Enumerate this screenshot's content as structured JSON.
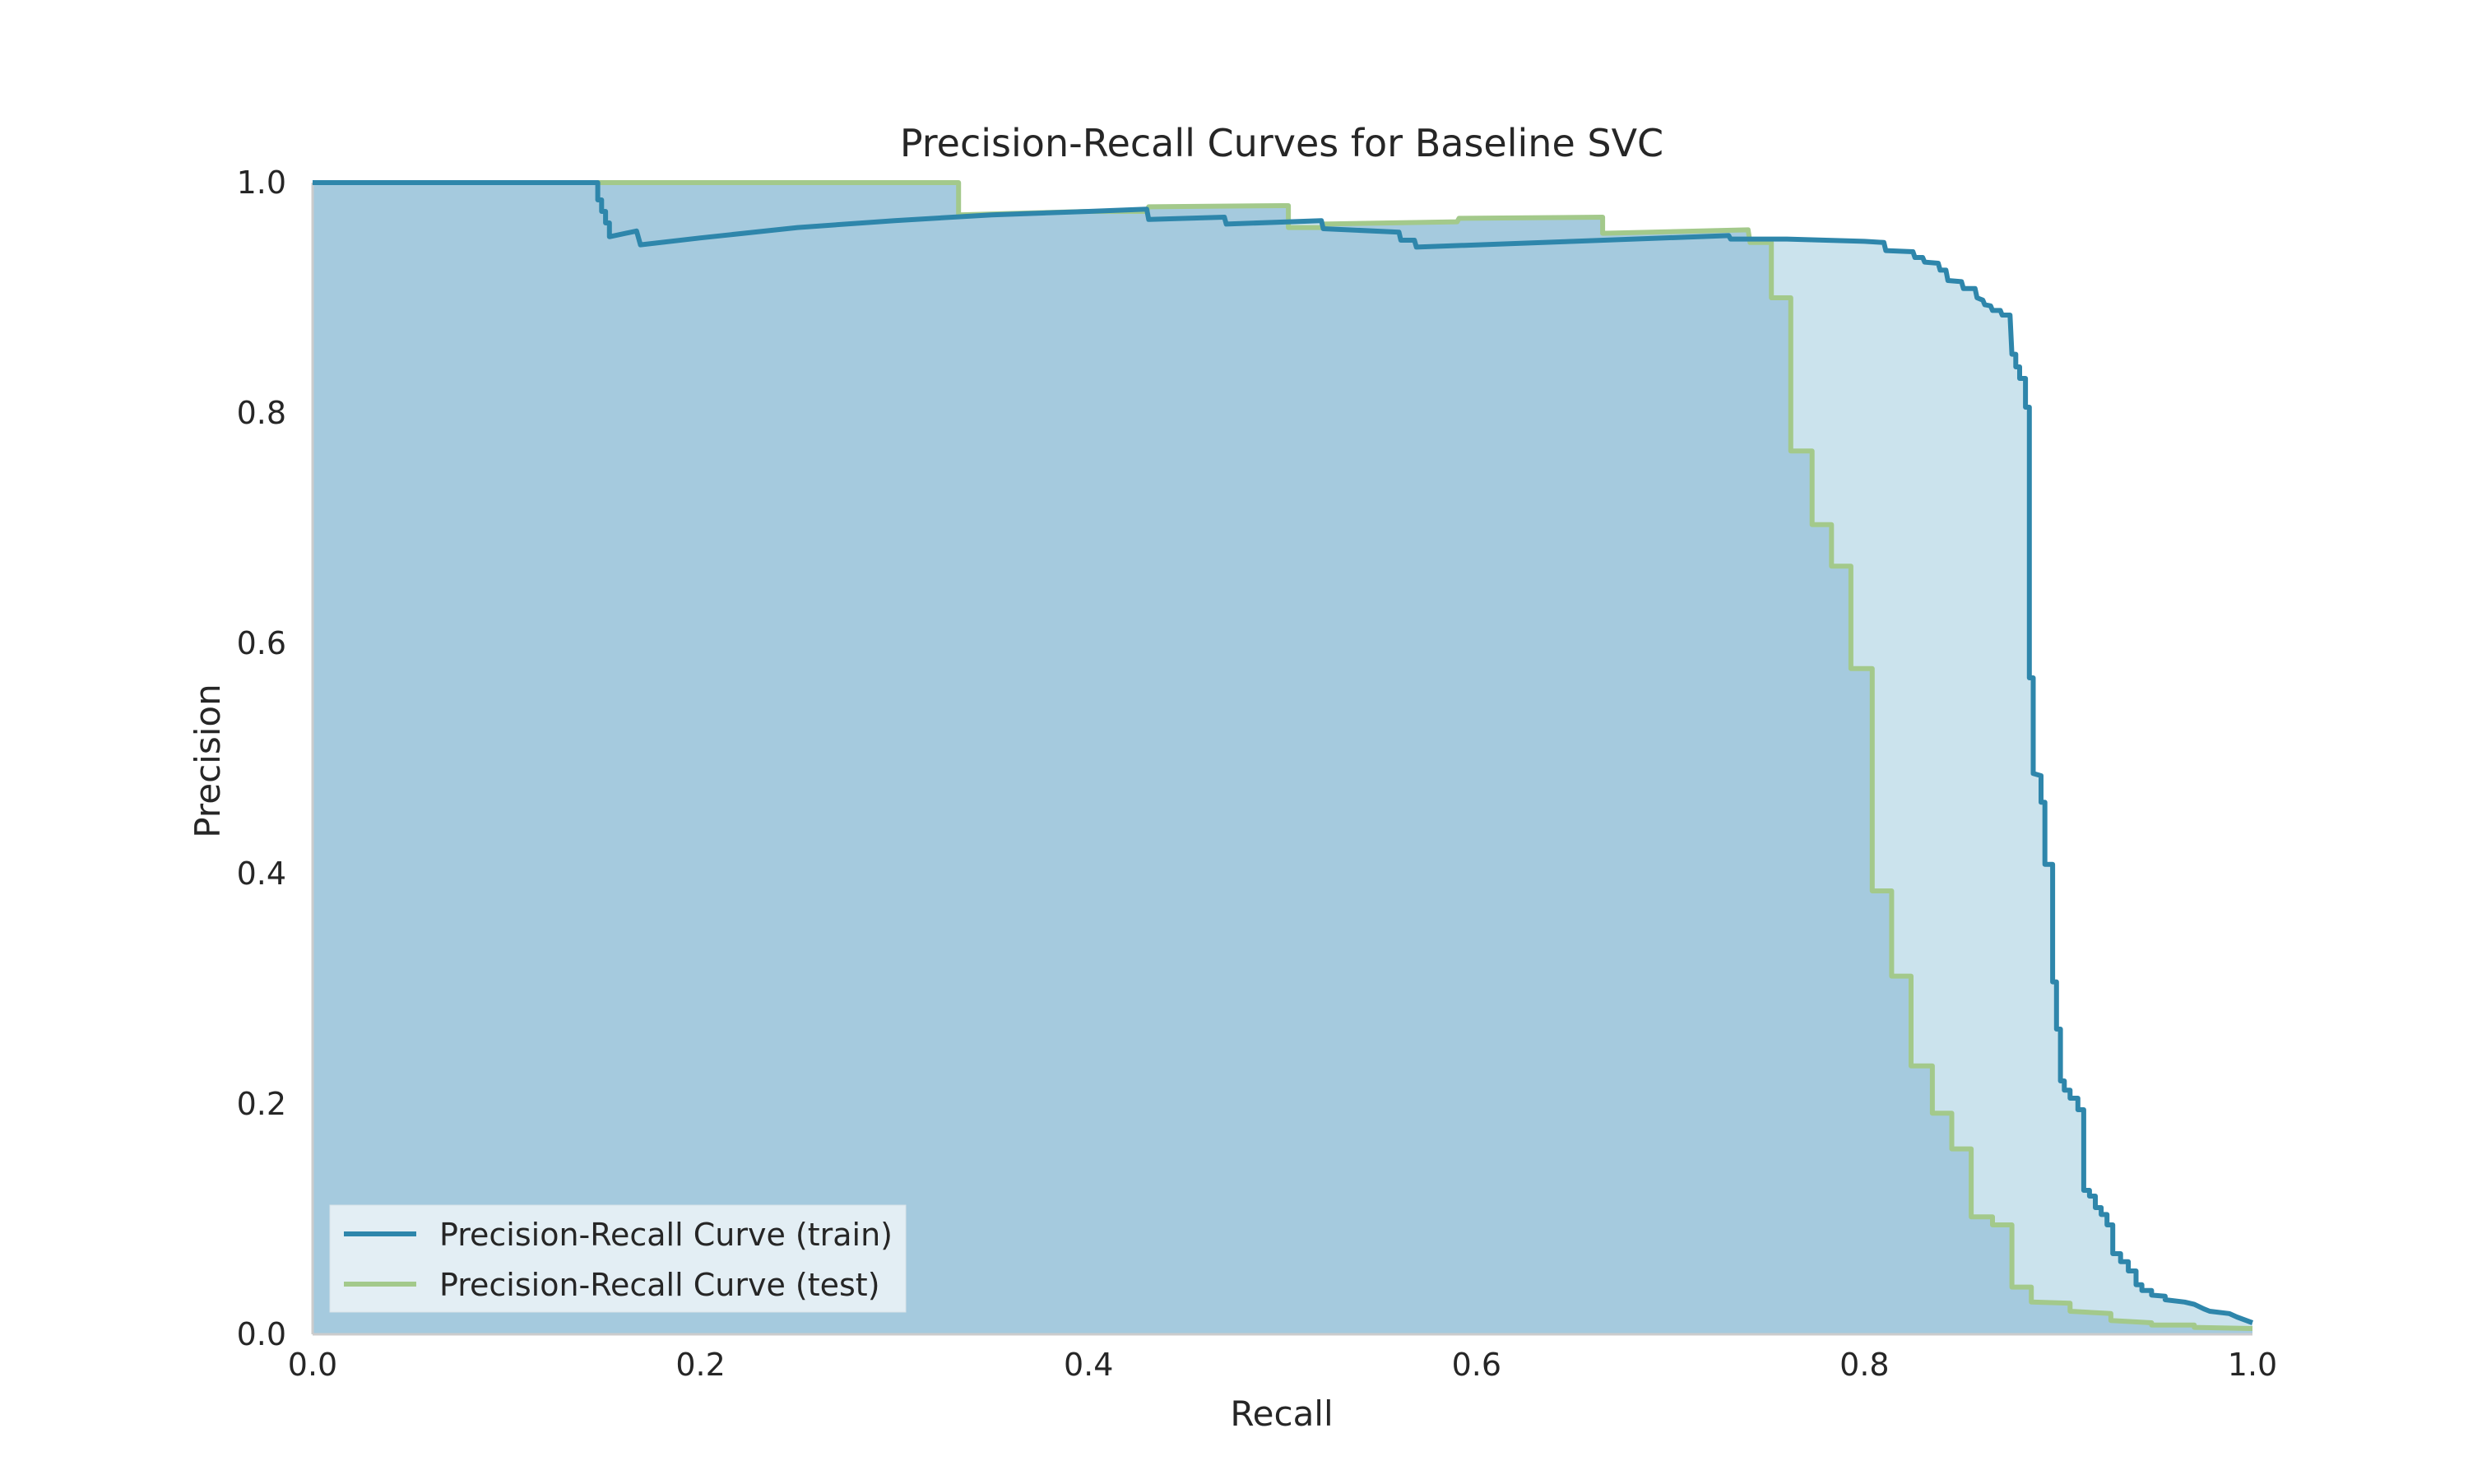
{
  "chart_data": {
    "type": "line",
    "title": "Precision-Recall Curves for Baseline SVC",
    "xlabel": "Recall",
    "ylabel": "Precision",
    "xlim": [
      0.0,
      1.0
    ],
    "ylim": [
      0.0,
      1.0
    ],
    "xticks": [
      "0.0",
      "0.2",
      "0.4",
      "0.6",
      "0.8",
      "1.0"
    ],
    "yticks": [
      "0.0",
      "0.2",
      "0.4",
      "0.6",
      "0.8",
      "1.0"
    ],
    "grid": false,
    "legend_position": "lower-left",
    "series": [
      {
        "name": "Precision-Recall Curve (train)",
        "color": "#2e86ab",
        "fill": "#cbe3ed",
        "points": [
          [
            0.0,
            1.0
          ],
          [
            0.147,
            1.0
          ],
          [
            0.147,
            0.985
          ],
          [
            0.149,
            0.985
          ],
          [
            0.149,
            0.975
          ],
          [
            0.151,
            0.975
          ],
          [
            0.151,
            0.965
          ],
          [
            0.153,
            0.965
          ],
          [
            0.153,
            0.953
          ],
          [
            0.167,
            0.958
          ],
          [
            0.169,
            0.946
          ],
          [
            0.2,
            0.952
          ],
          [
            0.25,
            0.961
          ],
          [
            0.3,
            0.967
          ],
          [
            0.35,
            0.972
          ],
          [
            0.4,
            0.975
          ],
          [
            0.43,
            0.977
          ],
          [
            0.431,
            0.968
          ],
          [
            0.47,
            0.97
          ],
          [
            0.471,
            0.964
          ],
          [
            0.52,
            0.967
          ],
          [
            0.521,
            0.96
          ],
          [
            0.56,
            0.957
          ],
          [
            0.561,
            0.95
          ],
          [
            0.568,
            0.95
          ],
          [
            0.569,
            0.944
          ],
          [
            0.65,
            0.949
          ],
          [
            0.73,
            0.954
          ],
          [
            0.731,
            0.951
          ],
          [
            0.76,
            0.951
          ],
          [
            0.8,
            0.949
          ],
          [
            0.81,
            0.948
          ],
          [
            0.811,
            0.941
          ],
          [
            0.825,
            0.94
          ],
          [
            0.826,
            0.935
          ],
          [
            0.83,
            0.935
          ],
          [
            0.831,
            0.931
          ],
          [
            0.838,
            0.93
          ],
          [
            0.839,
            0.924
          ],
          [
            0.842,
            0.924
          ],
          [
            0.843,
            0.915
          ],
          [
            0.85,
            0.914
          ],
          [
            0.851,
            0.908
          ],
          [
            0.857,
            0.908
          ],
          [
            0.858,
            0.9
          ],
          [
            0.861,
            0.898
          ],
          [
            0.862,
            0.894
          ],
          [
            0.865,
            0.893
          ],
          [
            0.866,
            0.889
          ],
          [
            0.87,
            0.889
          ],
          [
            0.871,
            0.885
          ],
          [
            0.875,
            0.885
          ],
          [
            0.876,
            0.851
          ],
          [
            0.878,
            0.851
          ],
          [
            0.878,
            0.84
          ],
          [
            0.88,
            0.84
          ],
          [
            0.88,
            0.83
          ],
          [
            0.883,
            0.83
          ],
          [
            0.883,
            0.805
          ],
          [
            0.885,
            0.805
          ],
          [
            0.885,
            0.57
          ],
          [
            0.887,
            0.57
          ],
          [
            0.887,
            0.487
          ],
          [
            0.891,
            0.485
          ],
          [
            0.891,
            0.462
          ],
          [
            0.893,
            0.462
          ],
          [
            0.893,
            0.408
          ],
          [
            0.897,
            0.408
          ],
          [
            0.897,
            0.306
          ],
          [
            0.899,
            0.306
          ],
          [
            0.899,
            0.265
          ],
          [
            0.901,
            0.265
          ],
          [
            0.901,
            0.22
          ],
          [
            0.903,
            0.22
          ],
          [
            0.903,
            0.212
          ],
          [
            0.906,
            0.212
          ],
          [
            0.906,
            0.205
          ],
          [
            0.91,
            0.205
          ],
          [
            0.91,
            0.195
          ],
          [
            0.913,
            0.195
          ],
          [
            0.913,
            0.125
          ],
          [
            0.916,
            0.125
          ],
          [
            0.916,
            0.12
          ],
          [
            0.919,
            0.12
          ],
          [
            0.919,
            0.11
          ],
          [
            0.922,
            0.11
          ],
          [
            0.922,
            0.104
          ],
          [
            0.925,
            0.104
          ],
          [
            0.925,
            0.095
          ],
          [
            0.928,
            0.095
          ],
          [
            0.928,
            0.07
          ],
          [
            0.932,
            0.07
          ],
          [
            0.932,
            0.063
          ],
          [
            0.936,
            0.063
          ],
          [
            0.936,
            0.055
          ],
          [
            0.94,
            0.055
          ],
          [
            0.94,
            0.043
          ],
          [
            0.943,
            0.043
          ],
          [
            0.943,
            0.038
          ],
          [
            0.948,
            0.038
          ],
          [
            0.948,
            0.034
          ],
          [
            0.955,
            0.033
          ],
          [
            0.955,
            0.03
          ],
          [
            0.965,
            0.028
          ],
          [
            0.97,
            0.026
          ],
          [
            0.975,
            0.022
          ],
          [
            0.978,
            0.02
          ],
          [
            0.988,
            0.018
          ],
          [
            0.992,
            0.015
          ],
          [
            1.0,
            0.01
          ]
        ]
      },
      {
        "name": "Precision-Recall Curve (test)",
        "color": "#a3c98b",
        "fill": "#a5cade",
        "points": [
          [
            0.0,
            1.0
          ],
          [
            0.333,
            1.0
          ],
          [
            0.333,
            0.972
          ],
          [
            0.4,
            0.975
          ],
          [
            0.43,
            0.975
          ],
          [
            0.431,
            0.979
          ],
          [
            0.5,
            0.98
          ],
          [
            0.503,
            0.98
          ],
          [
            0.503,
            0.961
          ],
          [
            0.52,
            0.961
          ],
          [
            0.521,
            0.964
          ],
          [
            0.59,
            0.966
          ],
          [
            0.591,
            0.969
          ],
          [
            0.665,
            0.97
          ],
          [
            0.665,
            0.956
          ],
          [
            0.74,
            0.959
          ],
          [
            0.741,
            0.948
          ],
          [
            0.752,
            0.948
          ],
          [
            0.752,
            0.9
          ],
          [
            0.762,
            0.9
          ],
          [
            0.762,
            0.767
          ],
          [
            0.773,
            0.767
          ],
          [
            0.773,
            0.703
          ],
          [
            0.783,
            0.703
          ],
          [
            0.783,
            0.667
          ],
          [
            0.793,
            0.667
          ],
          [
            0.793,
            0.578
          ],
          [
            0.804,
            0.578
          ],
          [
            0.804,
            0.385
          ],
          [
            0.814,
            0.385
          ],
          [
            0.814,
            0.311
          ],
          [
            0.824,
            0.311
          ],
          [
            0.824,
            0.233
          ],
          [
            0.835,
            0.233
          ],
          [
            0.835,
            0.192
          ],
          [
            0.845,
            0.192
          ],
          [
            0.845,
            0.161
          ],
          [
            0.855,
            0.161
          ],
          [
            0.855,
            0.102
          ],
          [
            0.866,
            0.102
          ],
          [
            0.866,
            0.095
          ],
          [
            0.876,
            0.095
          ],
          [
            0.876,
            0.041
          ],
          [
            0.886,
            0.041
          ],
          [
            0.886,
            0.028
          ],
          [
            0.906,
            0.027
          ],
          [
            0.906,
            0.02
          ],
          [
            0.927,
            0.018
          ],
          [
            0.927,
            0.012
          ],
          [
            0.948,
            0.01
          ],
          [
            0.948,
            0.008
          ],
          [
            0.97,
            0.008
          ],
          [
            0.97,
            0.006
          ],
          [
            1.0,
            0.005
          ]
        ]
      }
    ]
  }
}
